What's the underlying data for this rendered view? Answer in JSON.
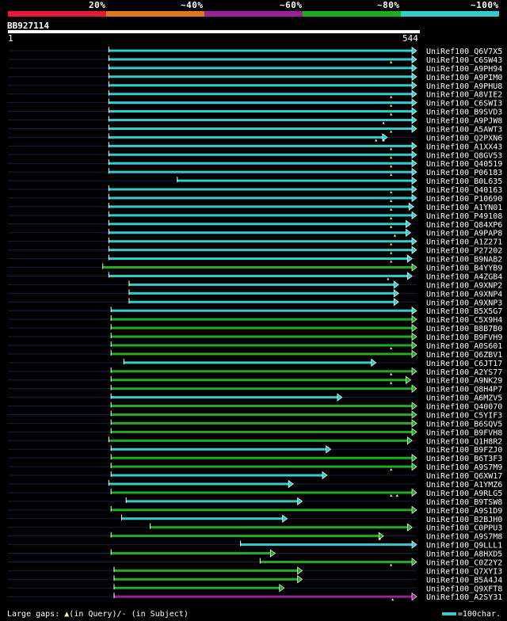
{
  "chart_data": {
    "type": "alignment-overview",
    "query": {
      "id": "BB927114",
      "start": 1,
      "end": 544
    },
    "identity_legend": [
      {
        "label": "20%",
        "color": "#e8183c"
      },
      {
        "label": "~40%",
        "color": "#e07820"
      },
      {
        "label": "~60%",
        "color": "#992299"
      },
      {
        "label": "~80%",
        "color": "#22aa22"
      },
      {
        "label": "~100%",
        "color": "#33cccc"
      }
    ],
    "hits": [
      {
        "name": "UniRef100_Q6V7X5",
        "start": 135,
        "end": 544,
        "color": "#33cccc",
        "marks": []
      },
      {
        "name": "UniRef100_C6SW43",
        "start": 135,
        "end": 544,
        "color": "#33cccc",
        "marks": [
          510
        ]
      },
      {
        "name": "UniRef100_A9PH94",
        "start": 135,
        "end": 544,
        "color": "#33cccc",
        "marks": []
      },
      {
        "name": "UniRef100_A9PIM0",
        "start": 135,
        "end": 544,
        "color": "#33cccc",
        "marks": []
      },
      {
        "name": "UniRef100_A9PHU8",
        "start": 135,
        "end": 544,
        "color": "#33cccc",
        "marks": []
      },
      {
        "name": "UniRef100_A8VIE2",
        "start": 135,
        "end": 544,
        "color": "#33cccc",
        "marks": [
          510
        ]
      },
      {
        "name": "UniRef100_C6SWI3",
        "start": 135,
        "end": 544,
        "color": "#33cccc",
        "marks": [
          510
        ]
      },
      {
        "name": "UniRef100_B9SVD3",
        "start": 135,
        "end": 544,
        "color": "#33cccc",
        "marks": [
          510
        ]
      },
      {
        "name": "UniRef100_A9PJW8",
        "start": 135,
        "end": 544,
        "color": "#33cccc",
        "marks": [
          500
        ]
      },
      {
        "name": "UniRef100_A5AWT3",
        "start": 135,
        "end": 544,
        "color": "#33cccc",
        "marks": [
          510
        ]
      },
      {
        "name": "UniRef100_Q2PXN6",
        "start": 135,
        "end": 505,
        "color": "#33cccc",
        "marks": [
          490,
          500
        ]
      },
      {
        "name": "UniRef100_A1XX43",
        "start": 135,
        "end": 544,
        "color": "#33cccc",
        "marks": [
          510
        ]
      },
      {
        "name": "UniRef100_Q8GV53",
        "start": 135,
        "end": 544,
        "color": "#33cccc",
        "marks": [
          510
        ]
      },
      {
        "name": "UniRef100_Q40519",
        "start": 135,
        "end": 544,
        "color": "#33cccc",
        "marks": [
          510
        ]
      },
      {
        "name": "UniRef100_P06183",
        "start": 135,
        "end": 544,
        "color": "#33cccc",
        "marks": [
          510
        ]
      },
      {
        "name": "UniRef100_B0L635",
        "start": 226,
        "end": 544,
        "color": "#33cccc",
        "marks": []
      },
      {
        "name": "UniRef100_Q40163",
        "start": 135,
        "end": 544,
        "color": "#33cccc",
        "marks": [
          510
        ]
      },
      {
        "name": "UniRef100_P10690",
        "start": 135,
        "end": 544,
        "color": "#33cccc",
        "marks": [
          510
        ]
      },
      {
        "name": "UniRef100_A1YN01",
        "start": 135,
        "end": 540,
        "color": "#33cccc",
        "marks": [
          510
        ]
      },
      {
        "name": "UniRef100_P49108",
        "start": 135,
        "end": 544,
        "color": "#33cccc",
        "marks": [
          510
        ]
      },
      {
        "name": "UniRef100_Q84XP6",
        "start": 135,
        "end": 536,
        "color": "#33cccc",
        "marks": [
          510
        ]
      },
      {
        "name": "UniRef100_A9PAP8",
        "start": 135,
        "end": 536,
        "color": "#33cccc",
        "marks": [
          515
        ]
      },
      {
        "name": "UniRef100_A1Z271",
        "start": 135,
        "end": 544,
        "color": "#33cccc",
        "marks": [
          510
        ]
      },
      {
        "name": "UniRef100_P27202",
        "start": 135,
        "end": 544,
        "color": "#33cccc",
        "marks": [
          510
        ]
      },
      {
        "name": "UniRef100_B9NAB2",
        "start": 135,
        "end": 538,
        "color": "#33cccc",
        "marks": [
          510
        ]
      },
      {
        "name": "UniRef100_B4YYB9",
        "start": 127,
        "end": 544,
        "color": "#22aa22",
        "marks": []
      },
      {
        "name": "UniRef100_A4ZGB4",
        "start": 135,
        "end": 538,
        "color": "#33cccc",
        "marks": [
          506
        ]
      },
      {
        "name": "UniRef100_A9XNP2",
        "start": 162,
        "end": 520,
        "color": "#33cccc",
        "marks": []
      },
      {
        "name": "UniRef100_A9XNP4",
        "start": 162,
        "end": 520,
        "color": "#33cccc",
        "marks": []
      },
      {
        "name": "UniRef100_A9XNP3",
        "start": 162,
        "end": 520,
        "color": "#33cccc",
        "marks": []
      },
      {
        "name": "UniRef100_B5X5G7",
        "start": 138,
        "end": 544,
        "color": "#33cccc",
        "marks": []
      },
      {
        "name": "UniRef100_C5X9H4",
        "start": 138,
        "end": 544,
        "color": "#22aa22",
        "marks": []
      },
      {
        "name": "UniRef100_B8B7B0",
        "start": 138,
        "end": 544,
        "color": "#22aa22",
        "marks": []
      },
      {
        "name": "UniRef100_B9FVH9",
        "start": 138,
        "end": 544,
        "color": "#22aa22",
        "marks": []
      },
      {
        "name": "UniRef100_A0S601",
        "start": 138,
        "end": 544,
        "color": "#22aa22",
        "marks": [
          510
        ]
      },
      {
        "name": "UniRef100_Q6ZBV1",
        "start": 138,
        "end": 544,
        "color": "#22aa22",
        "marks": []
      },
      {
        "name": "UniRef100_C6JT17",
        "start": 155,
        "end": 490,
        "color": "#33cccc",
        "marks": []
      },
      {
        "name": "UniRef100_A2YS77",
        "start": 138,
        "end": 544,
        "color": "#22aa22",
        "marks": [
          510
        ]
      },
      {
        "name": "UniRef100_A9NK29",
        "start": 138,
        "end": 536,
        "color": "#22aa22",
        "marks": [
          510
        ]
      },
      {
        "name": "UniRef100_Q8H4P7",
        "start": 138,
        "end": 544,
        "color": "#22aa22",
        "marks": []
      },
      {
        "name": "UniRef100_A6MZV5",
        "start": 138,
        "end": 445,
        "color": "#33cccc",
        "marks": []
      },
      {
        "name": "UniRef100_Q40070",
        "start": 138,
        "end": 544,
        "color": "#22aa22",
        "marks": []
      },
      {
        "name": "UniRef100_C5YIF3",
        "start": 138,
        "end": 544,
        "color": "#22aa22",
        "marks": []
      },
      {
        "name": "UniRef100_B6SQV5",
        "start": 138,
        "end": 544,
        "color": "#22aa22",
        "marks": []
      },
      {
        "name": "UniRef100_B9FVH8",
        "start": 138,
        "end": 544,
        "color": "#22aa22",
        "marks": []
      },
      {
        "name": "UniRef100_Q1H8R2",
        "start": 135,
        "end": 538,
        "color": "#22aa22",
        "marks": []
      },
      {
        "name": "UniRef100_B9FZJ0",
        "start": 138,
        "end": 430,
        "color": "#33cccc",
        "marks": []
      },
      {
        "name": "UniRef100_B6T3F3",
        "start": 138,
        "end": 544,
        "color": "#22aa22",
        "marks": []
      },
      {
        "name": "UniRef100_A9S7M9",
        "start": 138,
        "end": 544,
        "color": "#22aa22",
        "marks": [
          510
        ]
      },
      {
        "name": "UniRef100_Q6XW17",
        "start": 138,
        "end": 425,
        "color": "#33cccc",
        "marks": []
      },
      {
        "name": "UniRef100_A1YMZ6",
        "start": 135,
        "end": 380,
        "color": "#33cccc",
        "marks": []
      },
      {
        "name": "UniRef100_A9RLG5",
        "start": 138,
        "end": 544,
        "color": "#22aa22",
        "marks": [
          510,
          518
        ]
      },
      {
        "name": "UniRef100_B9TSW8",
        "start": 158,
        "end": 392,
        "color": "#33cccc",
        "marks": []
      },
      {
        "name": "UniRef100_A9S1D9",
        "start": 138,
        "end": 544,
        "color": "#22aa22",
        "marks": []
      },
      {
        "name": "UniRef100_B2BJH0",
        "start": 152,
        "end": 372,
        "color": "#33cccc",
        "marks": []
      },
      {
        "name": "UniRef100_C0PPU3",
        "start": 190,
        "end": 538,
        "color": "#22aa22",
        "marks": []
      },
      {
        "name": "UniRef100_A9S7M8",
        "start": 138,
        "end": 500,
        "color": "#22aa22",
        "marks": [
          495
        ]
      },
      {
        "name": "UniRef100_Q9LLL1",
        "start": 310,
        "end": 544,
        "color": "#33cccc",
        "marks": []
      },
      {
        "name": "UniRef100_A8HXD5",
        "start": 138,
        "end": 356,
        "color": "#22aa22",
        "marks": []
      },
      {
        "name": "UniRef100_C0Z2Y2",
        "start": 336,
        "end": 544,
        "color": "#22aa22",
        "marks": [
          510
        ]
      },
      {
        "name": "UniRef100_Q7XYI3",
        "start": 142,
        "end": 392,
        "color": "#22aa22",
        "marks": []
      },
      {
        "name": "UniRef100_B5A4J4",
        "start": 142,
        "end": 392,
        "color": "#22aa22",
        "marks": []
      },
      {
        "name": "UniRef100_Q9XFT8",
        "start": 142,
        "end": 368,
        "color": "#22aa22",
        "marks": []
      },
      {
        "name": "UniRef100_A2SY31",
        "start": 142,
        "end": 544,
        "color": "#992299",
        "marks": [
          512
        ]
      }
    ],
    "footer": {
      "large_gaps_label": "Large gaps:",
      "query_gap_text": "(in Query)/",
      "subject_gap_text": "(in Subject)",
      "scale_text": "=100char."
    }
  }
}
